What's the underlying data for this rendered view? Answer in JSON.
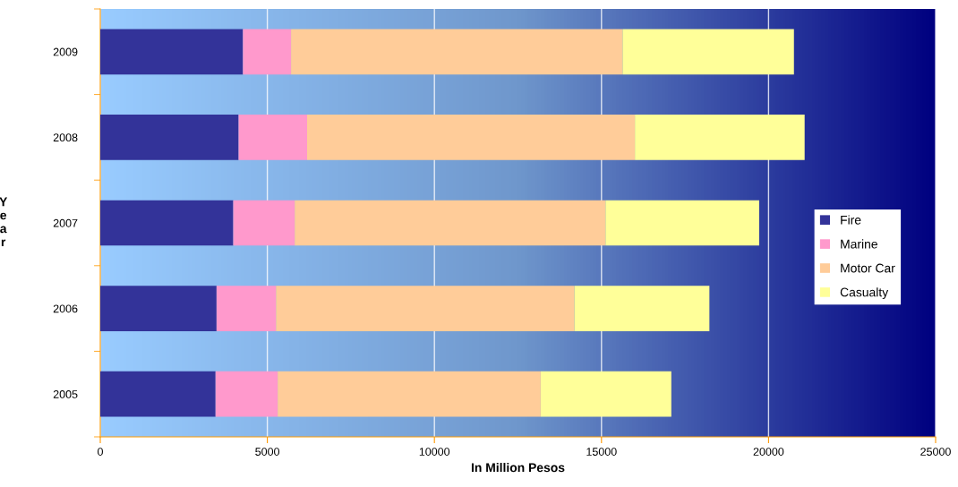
{
  "chart_data": {
    "type": "bar",
    "orientation": "horizontal",
    "stacked": true,
    "xlabel": "In Million Pesos",
    "ylabel": "Year",
    "categories": [
      "2009",
      "2008",
      "2007",
      "2006",
      "2005"
    ],
    "series": [
      {
        "name": "Fire",
        "color": "#333399",
        "values": [
          4270,
          4140,
          3980,
          3480,
          3450
        ]
      },
      {
        "name": "Marine",
        "color": "#ff99cc",
        "values": [
          1440,
          2050,
          1840,
          1780,
          1860
        ]
      },
      {
        "name": "Motor Car",
        "color": "#ffcc99",
        "values": [
          9920,
          9810,
          9300,
          8930,
          7870
        ]
      },
      {
        "name": "Casualty",
        "color": "#ffff99",
        "values": [
          5130,
          5080,
          4600,
          4040,
          3910
        ]
      }
    ],
    "xlim": [
      0,
      25000
    ],
    "xticks": [
      0,
      5000,
      10000,
      15000,
      20000,
      25000
    ],
    "grid": "x",
    "legend": "right"
  }
}
